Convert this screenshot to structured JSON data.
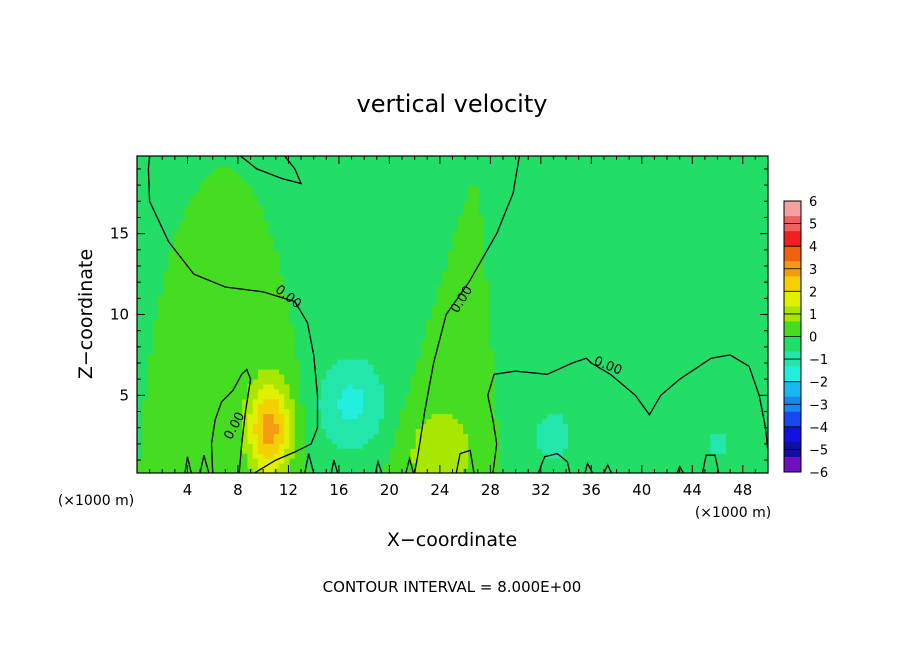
{
  "chart_data": {
    "type": "heatmap",
    "title": "vertical velocity",
    "xlabel": "X−coordinate",
    "ylabel": "Z−coordinate",
    "x_unit_left": "(×1000 m)",
    "x_unit_right": "(×1000 m)",
    "footer": "CONTOUR INTERVAL = 8.000E+00",
    "xlim": [
      0,
      50
    ],
    "ylim": [
      0.2,
      19.8
    ],
    "x_ticks": [
      4,
      8,
      12,
      16,
      20,
      24,
      28,
      32,
      36,
      40,
      44,
      48
    ],
    "y_ticks": [
      5,
      10,
      15
    ],
    "contour_label": "0.00",
    "colorbar": {
      "labels": [
        "6",
        "5",
        "4",
        "3",
        "2",
        "1",
        "0",
        "−1",
        "−2",
        "−3",
        "−4",
        "−5",
        "−6"
      ],
      "colors": [
        "#f4a0a0",
        "#f06060",
        "#ee2020",
        "#f06010",
        "#f39c12",
        "#f5d000",
        "#dff000",
        "#a8e800",
        "#44dd22",
        "#22dd66",
        "#22e6aa",
        "#22eedd",
        "#18b8f0",
        "#1888f0",
        "#1848f0",
        "#1010e0",
        "#1010a0",
        "#7010c0"
      ],
      "range": [
        -6,
        6
      ]
    },
    "features": [
      {
        "name": "updraft",
        "x": 10.5,
        "z": 3.0,
        "w": 3.0
      },
      {
        "name": "updraft",
        "x": 24.0,
        "z": 1.5,
        "w": 1.2
      },
      {
        "name": "downdraft",
        "x": 17.0,
        "z": 4.5,
        "w": -1.5
      },
      {
        "name": "downdraft",
        "x": 33.0,
        "z": 2.5,
        "w": -0.8
      },
      {
        "name": "downdraft",
        "x": 46.0,
        "z": 2.0,
        "w": -0.7
      }
    ],
    "zero_contours": [
      [
        [
          1.0,
          19.8
        ],
        [
          0.9,
          19.0
        ],
        [
          1.0,
          17.0
        ],
        [
          2.5,
          14.5
        ],
        [
          4.5,
          12.5
        ],
        [
          7.0,
          11.7
        ],
        [
          10.0,
          11.4
        ],
        [
          12.5,
          10.8
        ],
        [
          13.5,
          9.5
        ],
        [
          14.0,
          7.5
        ],
        [
          14.3,
          5.0
        ],
        [
          14.3,
          3.0
        ],
        [
          13.8,
          2.0
        ],
        [
          12.5,
          1.5
        ],
        [
          11.0,
          1.0
        ],
        [
          9.3,
          0.2
        ]
      ],
      [
        [
          8.2,
          19.8
        ],
        [
          9.5,
          19.0
        ],
        [
          11.5,
          18.4
        ],
        [
          13.0,
          18.1
        ],
        [
          12.5,
          19.0
        ],
        [
          11.7,
          19.8
        ]
      ],
      [
        [
          30.3,
          19.8
        ],
        [
          29.8,
          17.5
        ],
        [
          28.5,
          15.0
        ],
        [
          26.3,
          12.0
        ],
        [
          24.5,
          10.0
        ],
        [
          23.5,
          7.0
        ],
        [
          22.8,
          4.0
        ],
        [
          22.3,
          1.5
        ],
        [
          22.0,
          0.2
        ]
      ],
      [
        [
          28.2,
          0.2
        ],
        [
          28.5,
          2.0
        ],
        [
          28.2,
          3.5
        ],
        [
          27.8,
          5.0
        ],
        [
          28.3,
          6.3
        ],
        [
          30.0,
          6.5
        ],
        [
          32.5,
          6.3
        ],
        [
          34.5,
          7.0
        ],
        [
          35.6,
          7.3
        ],
        [
          36.0,
          7.0
        ],
        [
          37.5,
          6.3
        ],
        [
          39.5,
          5.0
        ],
        [
          40.6,
          3.8
        ],
        [
          41.5,
          5.0
        ],
        [
          43.0,
          6.0
        ],
        [
          45.5,
          7.3
        ],
        [
          47.0,
          7.5
        ],
        [
          48.5,
          6.8
        ],
        [
          49.3,
          5.0
        ],
        [
          49.8,
          3.0
        ],
        [
          50.0,
          1.5
        ]
      ],
      [
        [
          3.8,
          0.2
        ],
        [
          4.0,
          1.2
        ],
        [
          4.3,
          0.2
        ]
      ],
      [
        [
          5.0,
          0.2
        ],
        [
          5.3,
          1.3
        ],
        [
          5.7,
          0.2
        ]
      ],
      [
        [
          6.0,
          0.2
        ],
        [
          5.9,
          2.0
        ],
        [
          6.2,
          3.5
        ],
        [
          6.7,
          4.6
        ],
        [
          7.6,
          5.3
        ],
        [
          8.3,
          6.3
        ],
        [
          8.7,
          6.6
        ],
        [
          9.0,
          6.0
        ],
        [
          8.6,
          4.0
        ],
        [
          8.3,
          2.0
        ],
        [
          8.1,
          0.2
        ]
      ],
      [
        [
          13.3,
          0.2
        ],
        [
          13.6,
          1.4
        ],
        [
          14.0,
          0.2
        ]
      ],
      [
        [
          15.4,
          0.2
        ],
        [
          15.6,
          1.0
        ],
        [
          15.9,
          0.2
        ]
      ],
      [
        [
          18.9,
          0.2
        ],
        [
          19.1,
          0.9
        ],
        [
          19.4,
          0.2
        ]
      ],
      [
        [
          21.3,
          0.2
        ],
        [
          21.6,
          1.1
        ],
        [
          21.9,
          0.2
        ]
      ],
      [
        [
          25.3,
          0.2
        ],
        [
          25.6,
          1.4
        ],
        [
          26.4,
          1.6
        ],
        [
          26.7,
          0.2
        ]
      ],
      [
        [
          31.8,
          0.2
        ],
        [
          32.3,
          1.2
        ],
        [
          33.3,
          1.4
        ],
        [
          34.1,
          0.9
        ],
        [
          34.3,
          0.2
        ]
      ],
      [
        [
          35.5,
          0.2
        ],
        [
          35.7,
          0.8
        ],
        [
          36.1,
          0.2
        ]
      ],
      [
        [
          37.0,
          0.2
        ],
        [
          37.3,
          0.7
        ],
        [
          37.6,
          0.2
        ]
      ],
      [
        [
          42.8,
          0.2
        ],
        [
          43.0,
          0.6
        ],
        [
          43.3,
          0.2
        ]
      ],
      [
        [
          44.8,
          0.2
        ],
        [
          45.1,
          1.3
        ],
        [
          45.8,
          1.3
        ],
        [
          46.1,
          0.2
        ]
      ]
    ]
  }
}
